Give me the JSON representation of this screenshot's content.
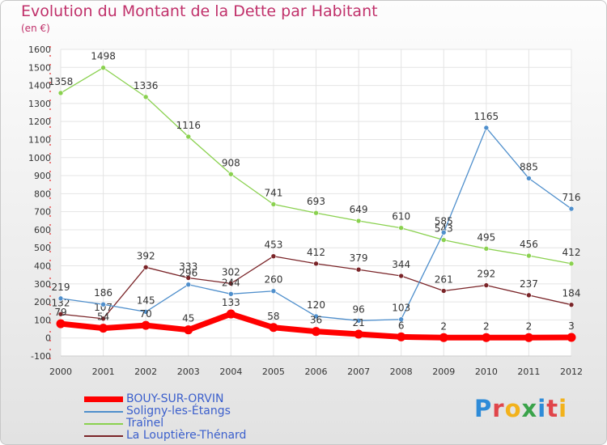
{
  "title": "Evolution du Montant de la Dette par Habitant",
  "subtitle": "(en €)",
  "logo": "Proxiti",
  "chart_data": {
    "type": "line",
    "title": "Evolution du Montant de la Dette par Habitant",
    "subtitle": "(en €)",
    "x": [
      2000,
      2001,
      2002,
      2003,
      2004,
      2005,
      2006,
      2007,
      2008,
      2009,
      2010,
      2011,
      2012
    ],
    "y_ticks": [
      -100,
      0,
      100,
      200,
      300,
      400,
      500,
      600,
      700,
      800,
      900,
      1000,
      1100,
      1200,
      1300,
      1400,
      1500,
      1600
    ],
    "ylim": [
      -100,
      1600
    ],
    "grid": true,
    "legend_position": "bottom-left",
    "series": [
      {
        "name": "BOUY-SUR-ORVIN",
        "color": "#ff0000",
        "values": [
          79,
          54,
          70,
          45,
          133,
          58,
          36,
          21,
          6,
          2,
          2,
          2,
          3
        ]
      },
      {
        "name": "Soligny-les-Étangs",
        "color": "#4f8fcc",
        "values": [
          219,
          186,
          145,
          296,
          244,
          260,
          120,
          96,
          103,
          585,
          1165,
          885,
          716
        ]
      },
      {
        "name": "Traînel",
        "color": "#8ad14f",
        "values": [
          1358,
          1498,
          1336,
          1116,
          908,
          741,
          693,
          649,
          610,
          543,
          495,
          456,
          412
        ]
      },
      {
        "name": "La Louptière-Thénard",
        "color": "#7a2428",
        "values": [
          132,
          107,
          392,
          333,
          302,
          453,
          412,
          379,
          344,
          261,
          292,
          237,
          184
        ]
      }
    ]
  }
}
